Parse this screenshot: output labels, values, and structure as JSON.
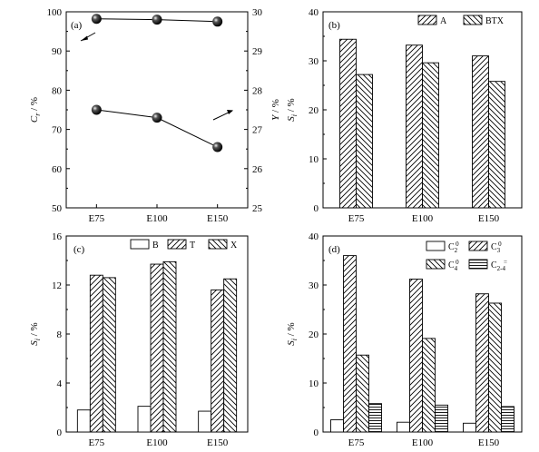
{
  "chart_data": [
    {
      "id": "a",
      "panel_label": "(a)",
      "type": "scatter",
      "categories": [
        "E75",
        "E100",
        "E150"
      ],
      "ylabel_left": {
        "main": "C",
        "sub": "r",
        "rest": " / %"
      },
      "ylabel_right": {
        "main": "Y",
        "sub": "",
        "rest": " / %"
      },
      "ylim_left": [
        50,
        100
      ],
      "yticks_left": [
        "50",
        "60",
        "70",
        "80",
        "90",
        "100"
      ],
      "ylim_right": [
        25,
        30
      ],
      "yticks_right": [
        "25",
        "26",
        "27",
        "28",
        "29",
        "30"
      ],
      "series": [
        {
          "axis": "left",
          "values": [
            98.2,
            98.0,
            97.5
          ]
        },
        {
          "axis": "right",
          "values": [
            27.5,
            27.3,
            26.55
          ]
        }
      ],
      "legend": []
    },
    {
      "id": "b",
      "panel_label": "(b)",
      "type": "bar",
      "categories": [
        "E75",
        "E100",
        "E150"
      ],
      "ylabel": {
        "main": "S",
        "sub": "i",
        "rest": " / %"
      },
      "ylim": [
        0,
        40
      ],
      "yticks": [
        "0",
        "10",
        "20",
        "30",
        "40"
      ],
      "series": [
        {
          "name": "A",
          "pattern": "diag-right",
          "values": [
            34.4,
            33.2,
            31.0
          ]
        },
        {
          "name": "BTX",
          "pattern": "diag-left",
          "values": [
            27.2,
            29.6,
            25.8
          ]
        }
      ]
    },
    {
      "id": "c",
      "panel_label": "(c)",
      "type": "bar",
      "categories": [
        "E75",
        "E100",
        "E150"
      ],
      "ylabel": {
        "main": "S",
        "sub": "i",
        "rest": " / %"
      },
      "ylim": [
        0,
        16
      ],
      "yticks": [
        "0",
        "4",
        "8",
        "12",
        "16"
      ],
      "series": [
        {
          "name": "B",
          "pattern": "none",
          "values": [
            1.8,
            2.1,
            1.7
          ]
        },
        {
          "name": "T",
          "pattern": "diag-right",
          "values": [
            12.8,
            13.7,
            11.6
          ]
        },
        {
          "name": "X",
          "pattern": "diag-left",
          "values": [
            12.6,
            13.9,
            12.5
          ]
        }
      ]
    },
    {
      "id": "d",
      "panel_label": "(d)",
      "type": "bar",
      "categories": [
        "E75",
        "E100",
        "E150"
      ],
      "ylabel": {
        "main": "S",
        "sub": "i",
        "rest": " / %"
      },
      "ylim": [
        0,
        40
      ],
      "yticks": [
        "0",
        "10",
        "20",
        "30",
        "40"
      ],
      "series": [
        {
          "name": "C",
          "name_sub": "2",
          "name_sup": "0",
          "pattern": "none",
          "values": [
            2.5,
            2.0,
            1.8
          ]
        },
        {
          "name": "C",
          "name_sub": "3",
          "name_sup": "0",
          "pattern": "diag-right",
          "values": [
            36.0,
            31.2,
            28.2
          ]
        },
        {
          "name": "C",
          "name_sub": "4",
          "name_sup": "0",
          "pattern": "diag-left",
          "values": [
            15.7,
            19.1,
            26.3
          ]
        },
        {
          "name": "C",
          "name_sub": "2-4",
          "name_sup": "=",
          "pattern": "horiz",
          "values": [
            5.8,
            5.5,
            5.2
          ]
        }
      ]
    }
  ]
}
